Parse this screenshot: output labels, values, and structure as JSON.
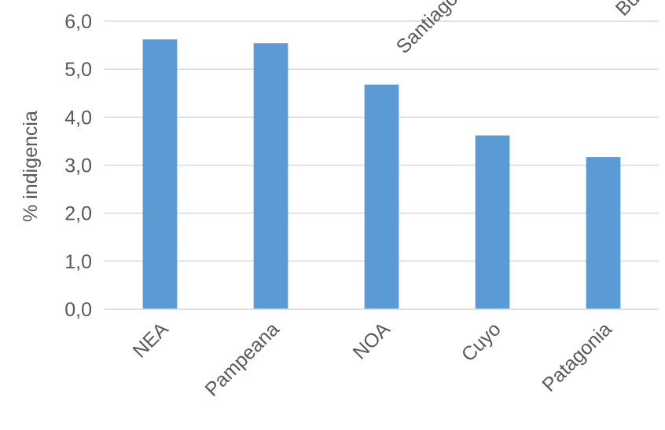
{
  "chart_data": {
    "type": "bar",
    "categories": [
      "NEA",
      "Pampeana",
      "NOA",
      "Cuyo",
      "Patagonia"
    ],
    "values": [
      5.62,
      5.54,
      4.68,
      3.62,
      3.17
    ],
    "title": "",
    "xlabel": "",
    "ylabel": "% indigencia",
    "ylim": [
      0,
      6
    ],
    "yticks": [
      "0,0",
      "1,0",
      "2,0",
      "3,0",
      "4,0",
      "5,0",
      "6,0"
    ],
    "grid": true,
    "bar_color": "#5b9bd5",
    "clipped_labels": [
      "Santiago",
      "Bu"
    ]
  }
}
